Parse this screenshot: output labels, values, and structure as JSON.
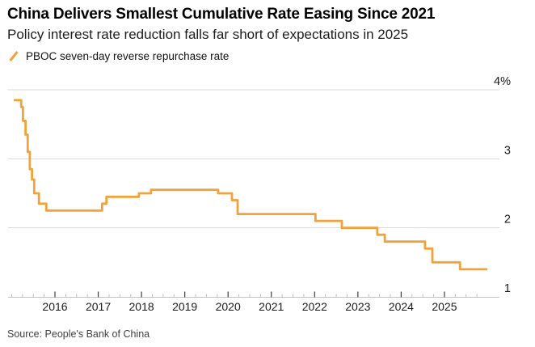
{
  "header": {
    "title": "China Delivers Smallest Cumulative Rate Easing Since 2021",
    "subtitle": "Policy interest rate reduction falls far short of expectations in 2025"
  },
  "legend": {
    "label": "PBOC seven-day reverse repurchase rate",
    "marker": "slash-icon",
    "color": "#F1A33B"
  },
  "source": {
    "text": "Source: People's Bank of China"
  },
  "colors": {
    "line": "#F1A33B",
    "grid": "#D9D9D9",
    "axis": "#C2C2C2",
    "tick_major": "#3D3D3D",
    "tick_minor": "#BDBDBD",
    "label_text": "#1A1A1A"
  },
  "chart_data": {
    "type": "line",
    "step": true,
    "title": "China Delivers Smallest Cumulative Rate Easing Since 2021",
    "subtitle": "Policy interest rate reduction falls far short of expectations in 2025",
    "ylabel": "",
    "xlabel": "",
    "unit": "%",
    "legend_position": "top-left",
    "grid": "horizontal",
    "y_axis": {
      "side": "right",
      "range": [
        1,
        4
      ],
      "ticks": [
        4,
        3,
        2,
        1
      ],
      "tick_labels": [
        "4%",
        "3",
        "2",
        "1"
      ]
    },
    "x_axis": {
      "range": [
        2015.0,
        2026.15
      ],
      "ticks_major": [
        2016,
        2017,
        2018,
        2019,
        2020,
        2021,
        2022,
        2023,
        2024,
        2025
      ],
      "tick_labels": [
        "2016",
        "2017",
        "2018",
        "2019",
        "2020",
        "2021",
        "2022",
        "2023",
        "2024",
        "2025"
      ],
      "minor_interval": 0.25
    },
    "series": [
      {
        "name": "PBOC seven-day reverse repurchase rate",
        "color": "#F1A33B",
        "points": [
          [
            2015.05,
            3.85
          ],
          [
            2015.22,
            3.75
          ],
          [
            2015.26,
            3.55
          ],
          [
            2015.32,
            3.35
          ],
          [
            2015.37,
            3.1
          ],
          [
            2015.42,
            2.85
          ],
          [
            2015.47,
            2.7
          ],
          [
            2015.52,
            2.5
          ],
          [
            2015.63,
            2.35
          ],
          [
            2015.8,
            2.25
          ],
          [
            2017.09,
            2.35
          ],
          [
            2017.19,
            2.45
          ],
          [
            2017.94,
            2.5
          ],
          [
            2018.22,
            2.55
          ],
          [
            2019.77,
            2.5
          ],
          [
            2020.09,
            2.4
          ],
          [
            2020.22,
            2.2
          ],
          [
            2022.02,
            2.1
          ],
          [
            2022.63,
            2.0
          ],
          [
            2023.45,
            1.9
          ],
          [
            2023.62,
            1.8
          ],
          [
            2024.55,
            1.7
          ],
          [
            2024.72,
            1.5
          ],
          [
            2025.36,
            1.4
          ],
          [
            2025.99,
            1.4
          ]
        ]
      }
    ]
  }
}
